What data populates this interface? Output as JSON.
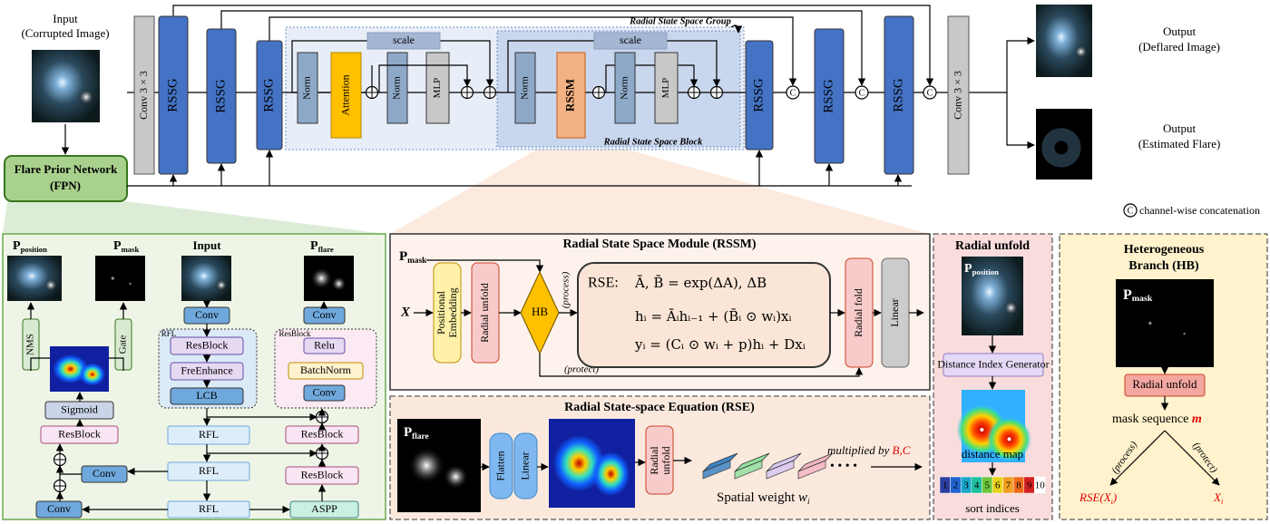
{
  "main": {
    "input": {
      "title": "Input",
      "sub": "(Corrupted Image)"
    },
    "conv": "Conv 3 × 3",
    "rssg": "RSSG",
    "scale": "scale",
    "norm": "Norm",
    "attention": "Attention",
    "mlp": "MLP",
    "rssm": "RSSM",
    "group_label": "Radial State Space Group",
    "block_label": "Radial State Space Block",
    "outputs": [
      {
        "title": "Output",
        "sub": "(Deflared Image)"
      },
      {
        "title": "Output",
        "sub": "(Estimated Flare)"
      }
    ],
    "fpn": {
      "name": "Flare Prior Network",
      "abbr": "(FPN)"
    },
    "concat_symbol": "C",
    "concat_legend": "channel-wise concatenation"
  },
  "fpn_panel": {
    "p": "P",
    "position": "position",
    "mask": "mask",
    "flare": "flare",
    "input": "Input",
    "nms": "NMS",
    "gate": "Gate",
    "conv": "Conv",
    "sigmoid": "Sigmoid",
    "resblock": "ResBlock",
    "rfl": "RFL",
    "freenhance": "FreEnhance",
    "lcb": "LCB",
    "relu": "Relu",
    "batchnorm": "BatchNorm",
    "aspp": "ASPP"
  },
  "rssm_panel": {
    "title": "Radial State Space Module (RSSM)",
    "x": "X",
    "positional_embedding": [
      "Positional",
      "Embedding"
    ],
    "radial_unfold": "Radial unfold",
    "hb": "HB",
    "process": "(process)",
    "protect": "(protect)",
    "rse_label": "RSE:",
    "equations": [
      "Ā, B̄ = exp(ΔA), ΔB",
      "hᵢ = Āᵢhᵢ₋₁ + (B̄ᵢ ⊙ wᵢ)xᵢ",
      "yᵢ = (Cᵢ ⊙ wᵢ + p)hᵢ + Dxᵢ"
    ],
    "radial_fold": "Radial fold",
    "linear": "Linear"
  },
  "rse_panel": {
    "title": "Radial State-space Equation (RSE)",
    "flatten": "Flatten",
    "linear": "Linear",
    "radial_unfold": [
      "Radial",
      "unfold"
    ],
    "spatial_weight": "Spatial weight",
    "w": "w",
    "i": "i",
    "dots": "• • • •",
    "multiplied": "multiplied by",
    "bc": "B,C"
  },
  "radial_unfold_panel": {
    "title": "Radial unfold",
    "generator": "Distance Index Generator",
    "distance_map": "distance map",
    "indices": [
      1,
      2,
      3,
      4,
      5,
      6,
      7,
      8,
      9,
      10
    ],
    "sort_indices": "sort indices"
  },
  "hb_panel": {
    "title": [
      "Heterogeneous",
      "Branch (HB)"
    ],
    "radial_unfold": "Radial unfold",
    "mask_sequence": "mask sequence",
    "m": "m",
    "process": "(process)",
    "protect": "(protect)",
    "rse": "RSE(",
    "x": "X",
    "i": "i",
    "close": ")"
  }
}
